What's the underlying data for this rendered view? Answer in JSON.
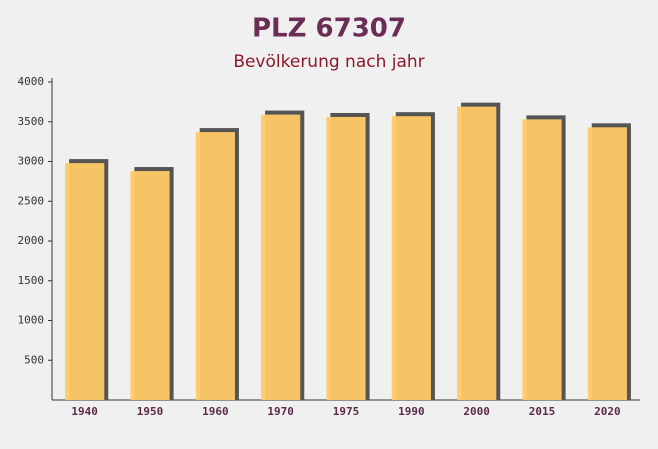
{
  "chart_data": {
    "type": "bar",
    "title": "PLZ 67307",
    "subtitle": "Bevölkerung nach jahr",
    "categories": [
      "1940",
      "1950",
      "1960",
      "1970",
      "1975",
      "1990",
      "2000",
      "2015",
      "2020"
    ],
    "values": [
      2980,
      2880,
      3370,
      3590,
      3560,
      3570,
      3690,
      3530,
      3430
    ],
    "color": "#ffc966",
    "ylim": [
      0,
      4000
    ],
    "yticks": [
      500,
      1000,
      1500,
      2000,
      2500,
      3000,
      3500,
      4000
    ]
  }
}
